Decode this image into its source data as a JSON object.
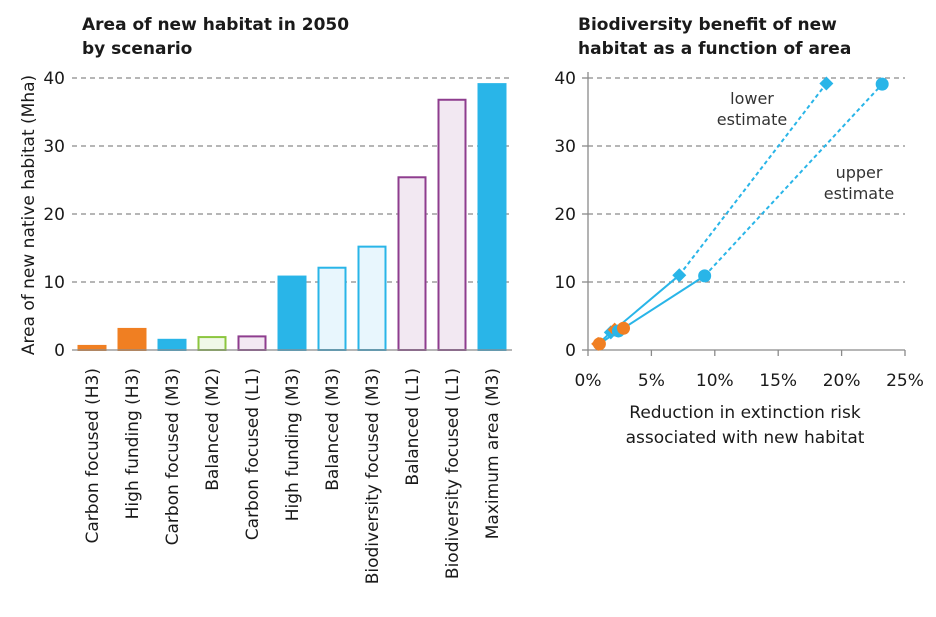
{
  "chart_data": [
    {
      "type": "bar",
      "title": [
        "Area of new habitat in 2050",
        "by scenario"
      ],
      "ylabel": "Area of new native habitat (Mha)",
      "xlabel": "",
      "ylim": [
        0,
        40
      ],
      "yticks": [
        "0",
        "10",
        "20",
        "30",
        "40"
      ],
      "grid": "horizontal dashed",
      "categories": [
        "Carbon focused (H3)",
        "High funding (H3)",
        "Carbon focused (M3)",
        "Balanced (M2)",
        "Carbon focused (L1)",
        "High funding (M3)",
        "Balanced (M3)",
        "Biodiversity focused (M3)",
        "Balanced (L1)",
        "Biodiversity focused (L1)",
        "Maximum area (M3)"
      ],
      "values": [
        0.6,
        3.1,
        1.5,
        1.9,
        2.0,
        10.8,
        12.1,
        15.2,
        25.4,
        36.8,
        39.1
      ],
      "bar_styles": [
        {
          "fill": "#f07f22",
          "stroke": "#f07f22"
        },
        {
          "fill": "#f07f22",
          "stroke": "#f07f22"
        },
        {
          "fill": "#29b5e8",
          "stroke": "#29b5e8"
        },
        {
          "fill": "#f0f8e8",
          "stroke": "#8cc63f"
        },
        {
          "fill": "#f2e8f2",
          "stroke": "#8e3d8e"
        },
        {
          "fill": "#29b5e8",
          "stroke": "#29b5e8"
        },
        {
          "fill": "#e8f6fd",
          "stroke": "#29b5e8"
        },
        {
          "fill": "#e8f6fd",
          "stroke": "#29b5e8"
        },
        {
          "fill": "#f2e8f2",
          "stroke": "#8e3d8e"
        },
        {
          "fill": "#f2e8f2",
          "stroke": "#8e3d8e"
        },
        {
          "fill": "#29b5e8",
          "stroke": "#29b5e8"
        }
      ]
    },
    {
      "type": "line",
      "title": [
        "Biodiversity benefit of new",
        "habitat as a function of area"
      ],
      "xlabel": [
        "Reduction in extinction risk",
        "associated with new habitat"
      ],
      "ylabel": "",
      "xlim": [
        0,
        25
      ],
      "ylim": [
        0,
        40
      ],
      "xticks": [
        "0%",
        "5%",
        "10%",
        "15%",
        "20%",
        "25%"
      ],
      "yticks": [
        "0",
        "10",
        "20",
        "30",
        "40"
      ],
      "grid": "horizontal dashed",
      "series": [
        {
          "name": "lower estimate",
          "marker": "diamond",
          "color": "#29b5e8",
          "points": [
            {
              "x": 0.8,
              "y": 0.9,
              "color": "#f07f22"
            },
            {
              "x": 1.8,
              "y": 2.6,
              "color": "#29b5e8"
            },
            {
              "x": 2.1,
              "y": 3.0,
              "color": "#f07f22"
            },
            {
              "x": 7.2,
              "y": 11.0,
              "color": "#29b5e8"
            },
            {
              "x": 18.8,
              "y": 39.2,
              "color": "#29b5e8"
            }
          ],
          "dashed_from_index": 3
        },
        {
          "name": "upper estimate",
          "marker": "circle",
          "color": "#29b5e8",
          "points": [
            {
              "x": 0.9,
              "y": 0.9,
              "color": "#f07f22"
            },
            {
              "x": 2.4,
              "y": 2.8,
              "color": "#29b5e8"
            },
            {
              "x": 2.8,
              "y": 3.2,
              "color": "#f07f22"
            },
            {
              "x": 9.2,
              "y": 10.9,
              "color": "#29b5e8"
            },
            {
              "x": 23.2,
              "y": 39.1,
              "color": "#29b5e8"
            }
          ],
          "dashed_from_index": 3
        }
      ],
      "annotations": [
        {
          "lines": [
            "lower",
            "estimate"
          ],
          "series": "lower estimate"
        },
        {
          "lines": [
            "upper",
            "estimate"
          ],
          "series": "upper estimate"
        }
      ]
    }
  ]
}
